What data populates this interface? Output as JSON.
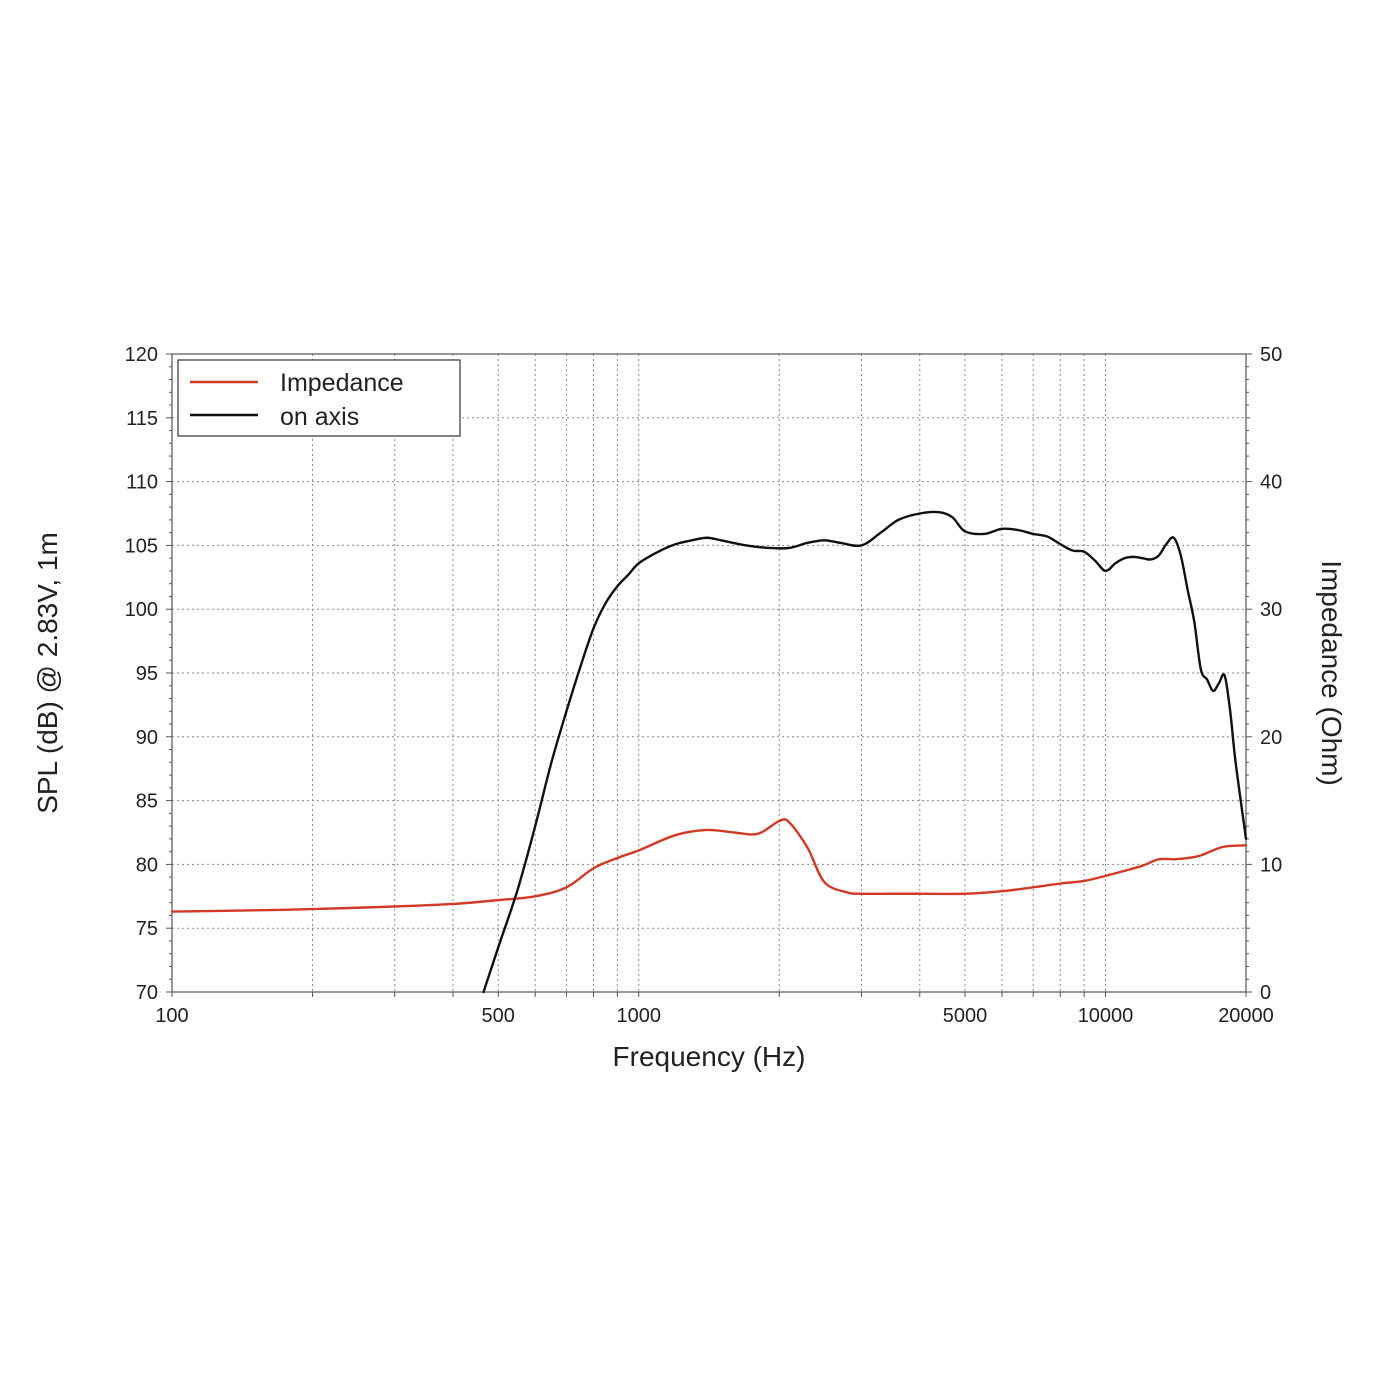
{
  "chart_data": {
    "type": "line",
    "xlabel": "Frequency (Hz)",
    "ylabel": "SPL (dB) @ 2.83V, 1m",
    "y2label": "Impedance (Ohm)",
    "x_scale": "log",
    "xlim": [
      100,
      20000
    ],
    "ylim": [
      70,
      120
    ],
    "y2lim": [
      0,
      50
    ],
    "x_ticks": [
      100,
      500,
      1000,
      5000,
      10000,
      20000
    ],
    "x_tick_labels": [
      "100",
      "500",
      "1000",
      "5000",
      "10000",
      "20000"
    ],
    "y_ticks": [
      70,
      75,
      80,
      85,
      90,
      95,
      100,
      105,
      110,
      115,
      120
    ],
    "y_tick_labels": [
      "70",
      "75",
      "80",
      "85",
      "90",
      "95",
      "100",
      "105",
      "110",
      "115",
      "120"
    ],
    "y2_ticks": [
      0,
      10,
      20,
      30,
      40,
      50
    ],
    "y2_tick_labels": [
      "0",
      "10",
      "20",
      "30",
      "40",
      "50"
    ],
    "grid": true,
    "legend_position": "top-left",
    "series": [
      {
        "name": "Impedance",
        "axis": "right",
        "color": "#d23a26",
        "x": [
          100,
          150,
          200,
          300,
          400,
          500,
          600,
          700,
          800,
          900,
          1000,
          1200,
          1400,
          1600,
          1800,
          2000,
          2100,
          2300,
          2500,
          2800,
          3000,
          3500,
          4000,
          5000,
          6000,
          7000,
          8000,
          9000,
          10000,
          11000,
          12000,
          13000,
          14000,
          15000,
          16000,
          17000,
          18000,
          20000
        ],
        "values": [
          6.3,
          6.4,
          6.5,
          6.7,
          6.9,
          7.2,
          7.5,
          8.2,
          9.7,
          10.5,
          11.1,
          12.3,
          12.7,
          12.5,
          12.4,
          13.4,
          13.3,
          11.3,
          8.6,
          7.8,
          7.7,
          7.7,
          7.7,
          7.7,
          7.9,
          8.2,
          8.5,
          8.7,
          9.1,
          9.5,
          9.9,
          10.4,
          10.4,
          10.5,
          10.7,
          11.1,
          11.4,
          11.5
        ]
      },
      {
        "name": "on axis",
        "axis": "left",
        "color": "#111111",
        "x": [
          465,
          500,
          550,
          600,
          650,
          700,
          750,
          800,
          850,
          900,
          950,
          1000,
          1100,
          1200,
          1300,
          1400,
          1500,
          1700,
          1900,
          2100,
          2300,
          2500,
          2700,
          3000,
          3300,
          3600,
          4000,
          4400,
          4700,
          5000,
          5500,
          6000,
          6500,
          7000,
          7500,
          8000,
          8500,
          9000,
          9500,
          10000,
          10500,
          11000,
          11500,
          12000,
          12500,
          13000,
          13500,
          14000,
          14500,
          15000,
          15500,
          16000,
          16500,
          17000,
          17500,
          18000,
          18500,
          19000,
          20000
        ],
        "values": [
          70,
          73.5,
          78,
          83,
          88,
          92,
          95.5,
          98.5,
          100.5,
          101.8,
          102.7,
          103.6,
          104.5,
          105.1,
          105.4,
          105.6,
          105.4,
          105.0,
          104.8,
          104.8,
          105.2,
          105.4,
          105.2,
          105.0,
          106.0,
          107.0,
          107.5,
          107.6,
          107.2,
          106.1,
          105.9,
          106.3,
          106.2,
          105.9,
          105.7,
          105.1,
          104.6,
          104.5,
          103.8,
          103.0,
          103.6,
          104.0,
          104.1,
          104.0,
          103.9,
          104.2,
          105.1,
          105.6,
          104.2,
          101.5,
          99.0,
          95.3,
          94.5,
          93.6,
          94.2,
          94.8,
          92.0,
          88.0,
          82.0
        ]
      }
    ]
  }
}
